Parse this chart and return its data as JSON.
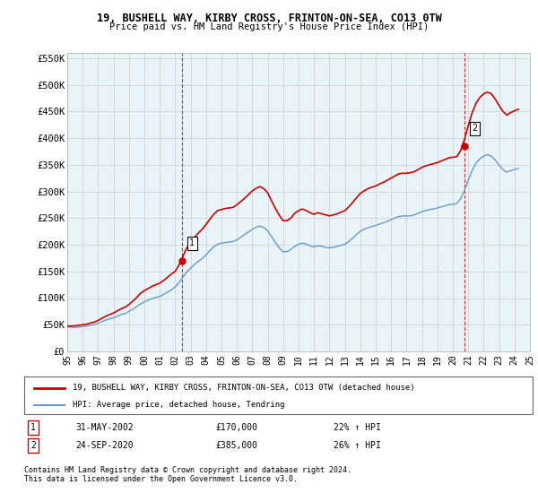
{
  "title": "19, BUSHELL WAY, KIRBY CROSS, FRINTON-ON-SEA, CO13 0TW",
  "subtitle": "Price paid vs. HM Land Registry's House Price Index (HPI)",
  "ylim": [
    0,
    560000
  ],
  "yticks": [
    0,
    50000,
    100000,
    150000,
    200000,
    250000,
    300000,
    350000,
    400000,
    450000,
    500000,
    550000
  ],
  "ytick_labels": [
    "£0",
    "£50K",
    "£100K",
    "£150K",
    "£200K",
    "£250K",
    "£300K",
    "£350K",
    "£400K",
    "£450K",
    "£500K",
    "£550K"
  ],
  "x_start_year": 1995,
  "x_end_year": 2025,
  "xtick_labels": [
    "95",
    "96",
    "97",
    "98",
    "99",
    "00",
    "01",
    "02",
    "03",
    "04",
    "05",
    "06",
    "07",
    "08",
    "09",
    "10",
    "11",
    "12",
    "13",
    "14",
    "15",
    "16",
    "17",
    "18",
    "19",
    "20",
    "21",
    "22",
    "23",
    "24",
    "25"
  ],
  "legend_line1": "19, BUSHELL WAY, KIRBY CROSS, FRINTON-ON-SEA, CO13 0TW (detached house)",
  "legend_line2": "HPI: Average price, detached house, Tendring",
  "annotation1_num": "1",
  "annotation1_date": "31-MAY-2002",
  "annotation1_price": "£170,000",
  "annotation1_hpi": "22% ↑ HPI",
  "annotation2_num": "2",
  "annotation2_date": "24-SEP-2020",
  "annotation2_price": "£385,000",
  "annotation2_hpi": "26% ↑ HPI",
  "footnote1": "Contains HM Land Registry data © Crown copyright and database right 2024.",
  "footnote2": "This data is licensed under the Open Government Licence v3.0.",
  "line_color_red": "#cc0000",
  "line_color_blue": "#6699cc",
  "vline_color": "#cc0000",
  "grid_color": "#cccccc",
  "background_color": "#e8f4f8",
  "plot_bg_color": "#e8f4f8",
  "sale1_year": 2002.42,
  "sale1_price": 170000,
  "sale2_year": 2020.73,
  "sale2_price": 385000,
  "hpi_data_x": [
    1995.0,
    1995.25,
    1995.5,
    1995.75,
    1996.0,
    1996.25,
    1996.5,
    1996.75,
    1997.0,
    1997.25,
    1997.5,
    1997.75,
    1998.0,
    1998.25,
    1998.5,
    1998.75,
    1999.0,
    1999.25,
    1999.5,
    1999.75,
    2000.0,
    2000.25,
    2000.5,
    2000.75,
    2001.0,
    2001.25,
    2001.5,
    2001.75,
    2002.0,
    2002.25,
    2002.5,
    2002.75,
    2003.0,
    2003.25,
    2003.5,
    2003.75,
    2004.0,
    2004.25,
    2004.5,
    2004.75,
    2005.0,
    2005.25,
    2005.5,
    2005.75,
    2006.0,
    2006.25,
    2006.5,
    2006.75,
    2007.0,
    2007.25,
    2007.5,
    2007.75,
    2008.0,
    2008.25,
    2008.5,
    2008.75,
    2009.0,
    2009.25,
    2009.5,
    2009.75,
    2010.0,
    2010.25,
    2010.5,
    2010.75,
    2011.0,
    2011.25,
    2011.5,
    2011.75,
    2012.0,
    2012.25,
    2012.5,
    2012.75,
    2013.0,
    2013.25,
    2013.5,
    2013.75,
    2014.0,
    2014.25,
    2014.5,
    2014.75,
    2015.0,
    2015.25,
    2015.5,
    2015.75,
    2016.0,
    2016.25,
    2016.5,
    2016.75,
    2017.0,
    2017.25,
    2017.5,
    2017.75,
    2018.0,
    2018.25,
    2018.5,
    2018.75,
    2019.0,
    2019.25,
    2019.5,
    2019.75,
    2020.0,
    2020.25,
    2020.5,
    2020.75,
    2021.0,
    2021.25,
    2021.5,
    2021.75,
    2022.0,
    2022.25,
    2022.5,
    2022.75,
    2023.0,
    2023.25,
    2023.5,
    2023.75,
    2024.0,
    2024.25
  ],
  "hpi_data_y": [
    46000,
    45500,
    45000,
    45500,
    46500,
    47500,
    49000,
    50500,
    53000,
    56000,
    59000,
    61000,
    63000,
    66000,
    69000,
    71000,
    75000,
    79000,
    84000,
    89000,
    93000,
    96000,
    99000,
    101000,
    103000,
    107000,
    111000,
    115000,
    121000,
    129000,
    139000,
    149000,
    156000,
    163000,
    169000,
    174000,
    181000,
    189000,
    196000,
    201000,
    203000,
    204000,
    205000,
    206000,
    209000,
    214000,
    219000,
    224000,
    229000,
    233000,
    235000,
    232000,
    226000,
    215000,
    204000,
    194000,
    187000,
    187000,
    191000,
    197000,
    201000,
    203000,
    201000,
    198000,
    196000,
    198000,
    197000,
    195000,
    194000,
    195000,
    197000,
    199000,
    201000,
    206000,
    212000,
    219000,
    225000,
    229000,
    232000,
    234000,
    236000,
    239000,
    241000,
    244000,
    247000,
    250000,
    253000,
    254000,
    254000,
    254000,
    256000,
    259000,
    262000,
    264000,
    266000,
    267000,
    269000,
    271000,
    273000,
    275000,
    276000,
    277000,
    286000,
    301000,
    321000,
    339000,
    353000,
    361000,
    366000,
    369000,
    366000,
    359000,
    349000,
    341000,
    336000,
    339000,
    341000,
    343000
  ],
  "property_data_x": [
    1995.0,
    1995.25,
    1995.5,
    1995.75,
    1996.0,
    1996.25,
    1996.5,
    1996.75,
    1997.0,
    1997.25,
    1997.5,
    1997.75,
    1998.0,
    1998.25,
    1998.5,
    1998.75,
    1999.0,
    1999.25,
    1999.5,
    1999.75,
    2000.0,
    2000.25,
    2000.5,
    2000.75,
    2001.0,
    2001.25,
    2001.5,
    2001.75,
    2002.0,
    2002.25,
    2002.5,
    2002.75,
    2003.0,
    2003.25,
    2003.5,
    2003.75,
    2004.0,
    2004.25,
    2004.5,
    2004.75,
    2005.0,
    2005.25,
    2005.5,
    2005.75,
    2006.0,
    2006.25,
    2006.5,
    2006.75,
    2007.0,
    2007.25,
    2007.5,
    2007.75,
    2008.0,
    2008.25,
    2008.5,
    2008.75,
    2009.0,
    2009.25,
    2009.5,
    2009.75,
    2010.0,
    2010.25,
    2010.5,
    2010.75,
    2011.0,
    2011.25,
    2011.5,
    2011.75,
    2012.0,
    2012.25,
    2012.5,
    2012.75,
    2013.0,
    2013.25,
    2013.5,
    2013.75,
    2014.0,
    2014.25,
    2014.5,
    2014.75,
    2015.0,
    2015.25,
    2015.5,
    2015.75,
    2016.0,
    2016.25,
    2016.5,
    2016.75,
    2017.0,
    2017.25,
    2017.5,
    2017.75,
    2018.0,
    2018.25,
    2018.5,
    2018.75,
    2019.0,
    2019.25,
    2019.5,
    2019.75,
    2020.0,
    2020.25,
    2020.5,
    2020.75,
    2021.0,
    2021.25,
    2021.5,
    2021.75,
    2022.0,
    2022.25,
    2022.5,
    2022.75,
    2023.0,
    2023.25,
    2023.5,
    2023.75,
    2024.0,
    2024.25
  ],
  "property_data_y": [
    47000,
    47500,
    48000,
    49000,
    50000,
    51000,
    53000,
    55000,
    58000,
    62000,
    66000,
    69000,
    72000,
    76000,
    80000,
    83000,
    88000,
    94000,
    101000,
    109000,
    114000,
    118000,
    122000,
    125000,
    128000,
    133000,
    139000,
    145000,
    150000,
    162000,
    178000,
    194000,
    204000,
    214000,
    222000,
    229000,
    238000,
    248000,
    257000,
    264000,
    266000,
    268000,
    269000,
    270000,
    275000,
    281000,
    287000,
    294000,
    301000,
    306000,
    309000,
    305000,
    297000,
    282000,
    268000,
    255000,
    245000,
    245000,
    250000,
    259000,
    264000,
    267000,
    264000,
    260000,
    257000,
    260000,
    258000,
    256000,
    254000,
    256000,
    258000,
    261000,
    264000,
    271000,
    279000,
    288000,
    296000,
    301000,
    305000,
    308000,
    310000,
    314000,
    317000,
    321000,
    325000,
    329000,
    333000,
    334000,
    334000,
    335000,
    337000,
    341000,
    345000,
    348000,
    350000,
    352000,
    354000,
    357000,
    360000,
    363000,
    364000,
    365000,
    376000,
    397000,
    423000,
    447000,
    465000,
    476000,
    483000,
    486000,
    483000,
    473000,
    461000,
    450000,
    443000,
    448000,
    451000,
    454000
  ]
}
